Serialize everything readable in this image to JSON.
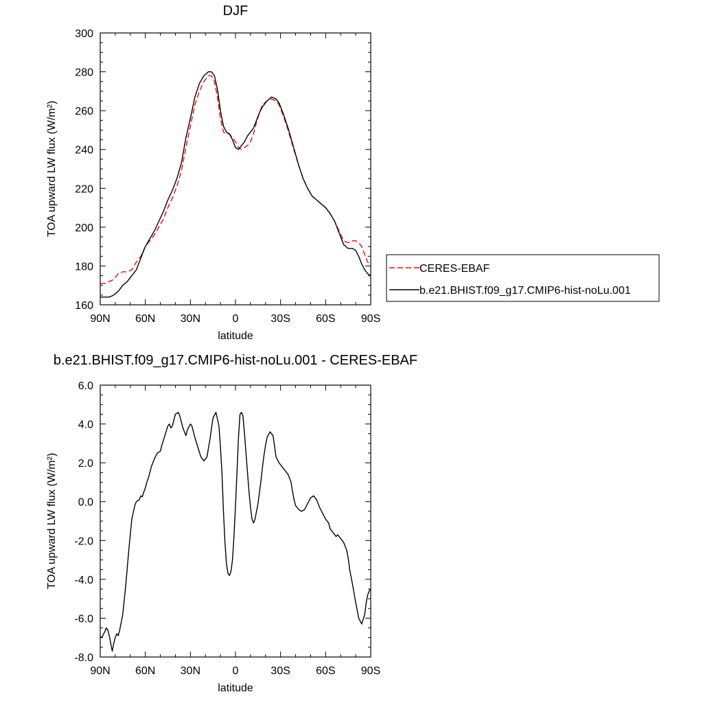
{
  "chart_data": [
    {
      "type": "line",
      "title": "DJF",
      "xlabel": "latitude",
      "ylabel": "TOA upward LW flux (W/m²)",
      "xlim": [
        90,
        -90
      ],
      "ylim": [
        160,
        300
      ],
      "x_ticks": [
        {
          "value": 90,
          "label": "90N"
        },
        {
          "value": 60,
          "label": "60N"
        },
        {
          "value": 30,
          "label": "30N"
        },
        {
          "value": 0,
          "label": "0"
        },
        {
          "value": -30,
          "label": "30S"
        },
        {
          "value": -60,
          "label": "60S"
        },
        {
          "value": -90,
          "label": "90S"
        }
      ],
      "y_ticks": [
        {
          "value": 160,
          "label": "160"
        },
        {
          "value": 180,
          "label": "180"
        },
        {
          "value": 200,
          "label": "200"
        },
        {
          "value": 220,
          "label": "220"
        },
        {
          "value": 240,
          "label": "240"
        },
        {
          "value": 260,
          "label": "260"
        },
        {
          "value": 280,
          "label": "280"
        },
        {
          "value": 300,
          "label": "300"
        }
      ],
      "legend_position": "right",
      "series": [
        {
          "name": "CERES-EBAF",
          "color": "#ff0000",
          "dash": "dashed",
          "x": [
            90,
            87,
            84,
            81,
            78,
            75,
            72,
            69,
            66,
            63,
            60,
            57,
            54,
            51,
            48,
            45,
            42,
            39,
            36,
            33,
            30,
            27,
            24,
            21,
            18,
            16,
            14,
            12,
            10,
            8,
            6,
            4,
            2,
            0,
            -2,
            -4,
            -6,
            -8,
            -10,
            -12,
            -14,
            -16,
            -18,
            -21,
            -24,
            -27,
            -29,
            -32,
            -35,
            -38,
            -42,
            -45,
            -48,
            -51,
            -54,
            -57,
            -60,
            -63,
            -66,
            -69,
            -72,
            -75,
            -78,
            -80,
            -82,
            -84,
            -86,
            -88,
            -90
          ],
          "y": [
            171,
            171,
            172,
            173,
            176,
            177,
            177,
            178,
            182,
            185,
            190,
            193,
            196,
            200,
            204,
            210,
            215,
            221,
            229,
            241,
            252,
            263,
            270,
            275,
            278,
            278,
            275,
            267,
            256,
            249,
            248,
            248,
            246,
            244,
            241,
            240,
            241,
            242,
            244,
            248,
            254,
            259,
            263,
            265,
            266,
            265,
            263,
            257,
            250,
            242,
            232,
            225,
            220,
            216,
            214,
            212,
            210,
            207,
            203,
            198,
            193,
            192,
            193,
            193,
            192,
            190,
            186,
            182,
            180
          ]
        },
        {
          "name": "b.e21.BHIST.f09_g17.CMIP6-hist-noLu.001",
          "color": "#000000",
          "dash": "solid",
          "x": [
            90,
            87,
            84,
            81,
            78,
            75,
            72,
            69,
            66,
            63,
            60,
            57,
            54,
            51,
            48,
            45,
            42,
            39,
            36,
            33,
            30,
            27,
            24,
            21,
            18,
            16,
            14,
            12,
            10,
            8,
            6,
            4,
            2,
            0,
            -2,
            -4,
            -6,
            -8,
            -10,
            -12,
            -14,
            -16,
            -18,
            -21,
            -24,
            -27,
            -29,
            -32,
            -35,
            -38,
            -42,
            -45,
            -48,
            -51,
            -54,
            -57,
            -60,
            -63,
            -66,
            -69,
            -72,
            -75,
            -78,
            -80,
            -82,
            -84,
            -86,
            -88,
            -90
          ],
          "y": [
            164,
            164,
            164,
            165,
            167,
            170,
            172,
            175,
            178,
            184,
            190,
            194,
            198,
            203,
            208,
            214,
            219,
            225,
            233,
            246,
            256,
            267,
            274,
            278,
            280,
            280,
            278,
            271,
            260,
            252,
            249,
            248,
            245,
            241,
            240,
            242,
            244,
            247,
            249,
            251,
            255,
            259,
            262,
            265,
            267,
            266,
            264,
            258,
            251,
            243,
            232,
            225,
            220,
            216,
            214,
            212,
            210,
            207,
            203,
            197,
            191,
            189,
            189,
            188,
            185,
            181,
            178,
            176,
            175
          ]
        }
      ]
    },
    {
      "type": "line",
      "title": "b.e21.BHIST.f09_g17.CMIP6-hist-noLu.001 - CERES-EBAF",
      "xlabel": "latitude",
      "ylabel": "TOA upward LW flux (W/m²)",
      "xlim": [
        90,
        -90
      ],
      "ylim": [
        -8,
        6
      ],
      "x_ticks": [
        {
          "value": 90,
          "label": "90N"
        },
        {
          "value": 60,
          "label": "60N"
        },
        {
          "value": 30,
          "label": "30N"
        },
        {
          "value": 0,
          "label": "0"
        },
        {
          "value": -30,
          "label": "30S"
        },
        {
          "value": -60,
          "label": "60S"
        },
        {
          "value": -90,
          "label": "90S"
        }
      ],
      "y_ticks": [
        {
          "value": -8,
          "label": "-8.0"
        },
        {
          "value": -6,
          "label": "-6.0"
        },
        {
          "value": -4,
          "label": "-4.0"
        },
        {
          "value": -2,
          "label": "-2.0"
        },
        {
          "value": 0,
          "label": "0.0"
        },
        {
          "value": 2,
          "label": "2.0"
        },
        {
          "value": 4,
          "label": "4.0"
        },
        {
          "value": 6,
          "label": "6.0"
        }
      ],
      "series": [
        {
          "color": "#000000",
          "dash": "solid",
          "x": [
            90,
            89,
            87,
            86,
            85,
            84,
            83,
            82,
            81,
            80,
            79,
            78,
            77,
            75,
            73,
            71,
            69,
            67,
            66,
            64,
            63,
            62,
            61,
            60,
            59,
            58,
            56,
            54,
            52,
            50,
            49,
            47,
            45,
            44,
            43,
            42,
            40,
            38,
            37,
            35,
            34,
            33,
            32,
            30,
            29,
            27,
            25,
            23,
            21,
            19,
            17,
            15,
            13,
            11,
            10,
            9,
            8,
            7,
            6,
            5,
            4,
            3,
            2,
            1,
            0,
            -1,
            -2,
            -3,
            -4,
            -5,
            -6,
            -7,
            -8,
            -9,
            -10,
            -11,
            -12,
            -13,
            -14,
            -15,
            -16,
            -17,
            -18,
            -19,
            -20,
            -21,
            -23,
            -25,
            -27,
            -29,
            -31,
            -33,
            -35,
            -37,
            -38,
            -39,
            -40,
            -42,
            -44,
            -46,
            -48,
            -50,
            -52,
            -54,
            -56,
            -58,
            -60,
            -62,
            -63,
            -64,
            -65,
            -66,
            -67,
            -68,
            -69,
            -70,
            -72,
            -74,
            -75,
            -76,
            -78,
            -80,
            -82,
            -84,
            -86,
            -87,
            -88,
            -89,
            -90
          ],
          "y": [
            -6.95,
            -7.0,
            -6.7,
            -6.5,
            -6.6,
            -6.9,
            -7.3,
            -7.7,
            -7.3,
            -7.0,
            -6.8,
            -6.9,
            -6.6,
            -5.8,
            -4.3,
            -2.5,
            -0.9,
            -0.2,
            0.0,
            0.1,
            0.3,
            0.25,
            0.5,
            0.7,
            1.0,
            1.2,
            1.8,
            2.2,
            2.5,
            2.6,
            2.9,
            3.4,
            3.9,
            4.0,
            3.8,
            3.9,
            4.5,
            4.6,
            4.4,
            3.8,
            3.6,
            3.4,
            3.7,
            4.0,
            3.9,
            3.3,
            2.8,
            2.3,
            2.1,
            2.3,
            3.2,
            4.3,
            4.6,
            3.9,
            2.8,
            1.5,
            -0.5,
            -2.1,
            -3.2,
            -3.7,
            -3.8,
            -3.6,
            -3.0,
            -1.8,
            -0.2,
            1.5,
            3.3,
            4.5,
            4.6,
            4.4,
            3.5,
            2.5,
            1.5,
            0.5,
            -0.3,
            -0.9,
            -1.1,
            -0.9,
            -0.5,
            -0.1,
            0.5,
            1.1,
            1.8,
            2.4,
            2.9,
            3.3,
            3.6,
            3.4,
            2.3,
            2.0,
            1.8,
            1.6,
            1.4,
            1.0,
            0.5,
            0.1,
            -0.2,
            -0.4,
            -0.5,
            -0.4,
            -0.1,
            0.2,
            0.3,
            0.1,
            -0.3,
            -0.6,
            -0.9,
            -1.1,
            -1.4,
            -1.5,
            -1.6,
            -1.7,
            -1.8,
            -1.7,
            -1.8,
            -1.9,
            -2.1,
            -2.5,
            -2.9,
            -3.5,
            -4.3,
            -5.2,
            -6.0,
            -6.3,
            -5.8,
            -5.2,
            -4.8,
            -4.6,
            -4.5
          ]
        }
      ]
    }
  ]
}
